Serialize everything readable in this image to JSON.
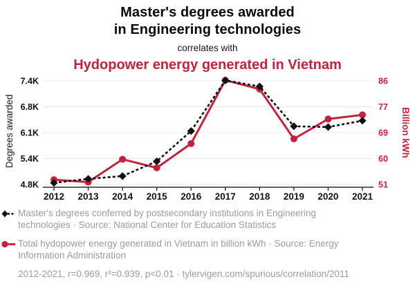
{
  "header": {
    "title_line1": "Master's degrees awarded",
    "title_line2": "in Engineering technologies",
    "connector": "correlates with",
    "subtitle": "Hydopower energy generated in Vietnam"
  },
  "colors": {
    "red": "#c5203c",
    "black": "#111111",
    "gray_text": "#9b9b9b",
    "gridline": "#e7e7e7"
  },
  "chart_data": {
    "type": "line",
    "x": [
      2012,
      2013,
      2014,
      2015,
      2016,
      2017,
      2018,
      2019,
      2020,
      2021
    ],
    "x_tick_labels": [
      "2012",
      "2013",
      "2014",
      "2015",
      "2016",
      "2017",
      "2018",
      "2019",
      "2020",
      "2021"
    ],
    "series": [
      {
        "name": "masters-degrees",
        "label": "Master's degrees awarded in Engineering technologies",
        "axis": "left",
        "color": "#111111",
        "style": "dashed",
        "marker": "diamond",
        "values": [
          4840,
          4940,
          5010,
          5380,
          6140,
          7410,
          7260,
          6260,
          6240,
          6400
        ]
      },
      {
        "name": "hydropower-vietnam",
        "label": "Hydopower energy generated in Vietnam",
        "axis": "right",
        "color": "#c5203c",
        "style": "solid",
        "marker": "circle",
        "values": [
          52.6,
          51.8,
          59.5,
          56.6,
          64.8,
          86.2,
          83.2,
          66.4,
          73.1,
          74.5
        ]
      }
    ],
    "left_axis": {
      "label": "Degrees awarded",
      "ticks": [
        "4.8K",
        "5.4K",
        "6.1K",
        "6.8K",
        "7.4K"
      ],
      "range": [
        4800,
        7400
      ]
    },
    "right_axis": {
      "label": "Billion kWh",
      "ticks": [
        "51",
        "60",
        "69",
        "77",
        "86"
      ],
      "range": [
        51,
        86
      ]
    },
    "grid": true,
    "legend_position": "bottom"
  },
  "legend": [
    {
      "marker": "black-diamond-dashed",
      "text": "Master's degrees conferred by postsecondary institutions in Engineering technologies · Source: National Center for Education Statistics"
    },
    {
      "marker": "red-circle-solid",
      "text": "Total hydopower energy generated in Vietnam in billion kWh · Source: Energy Information Administration"
    }
  ],
  "footer": "2012-2021, r=0.969, r²=0.939, p<0.01 · tylervigen.com/spurious/correlation/2011"
}
